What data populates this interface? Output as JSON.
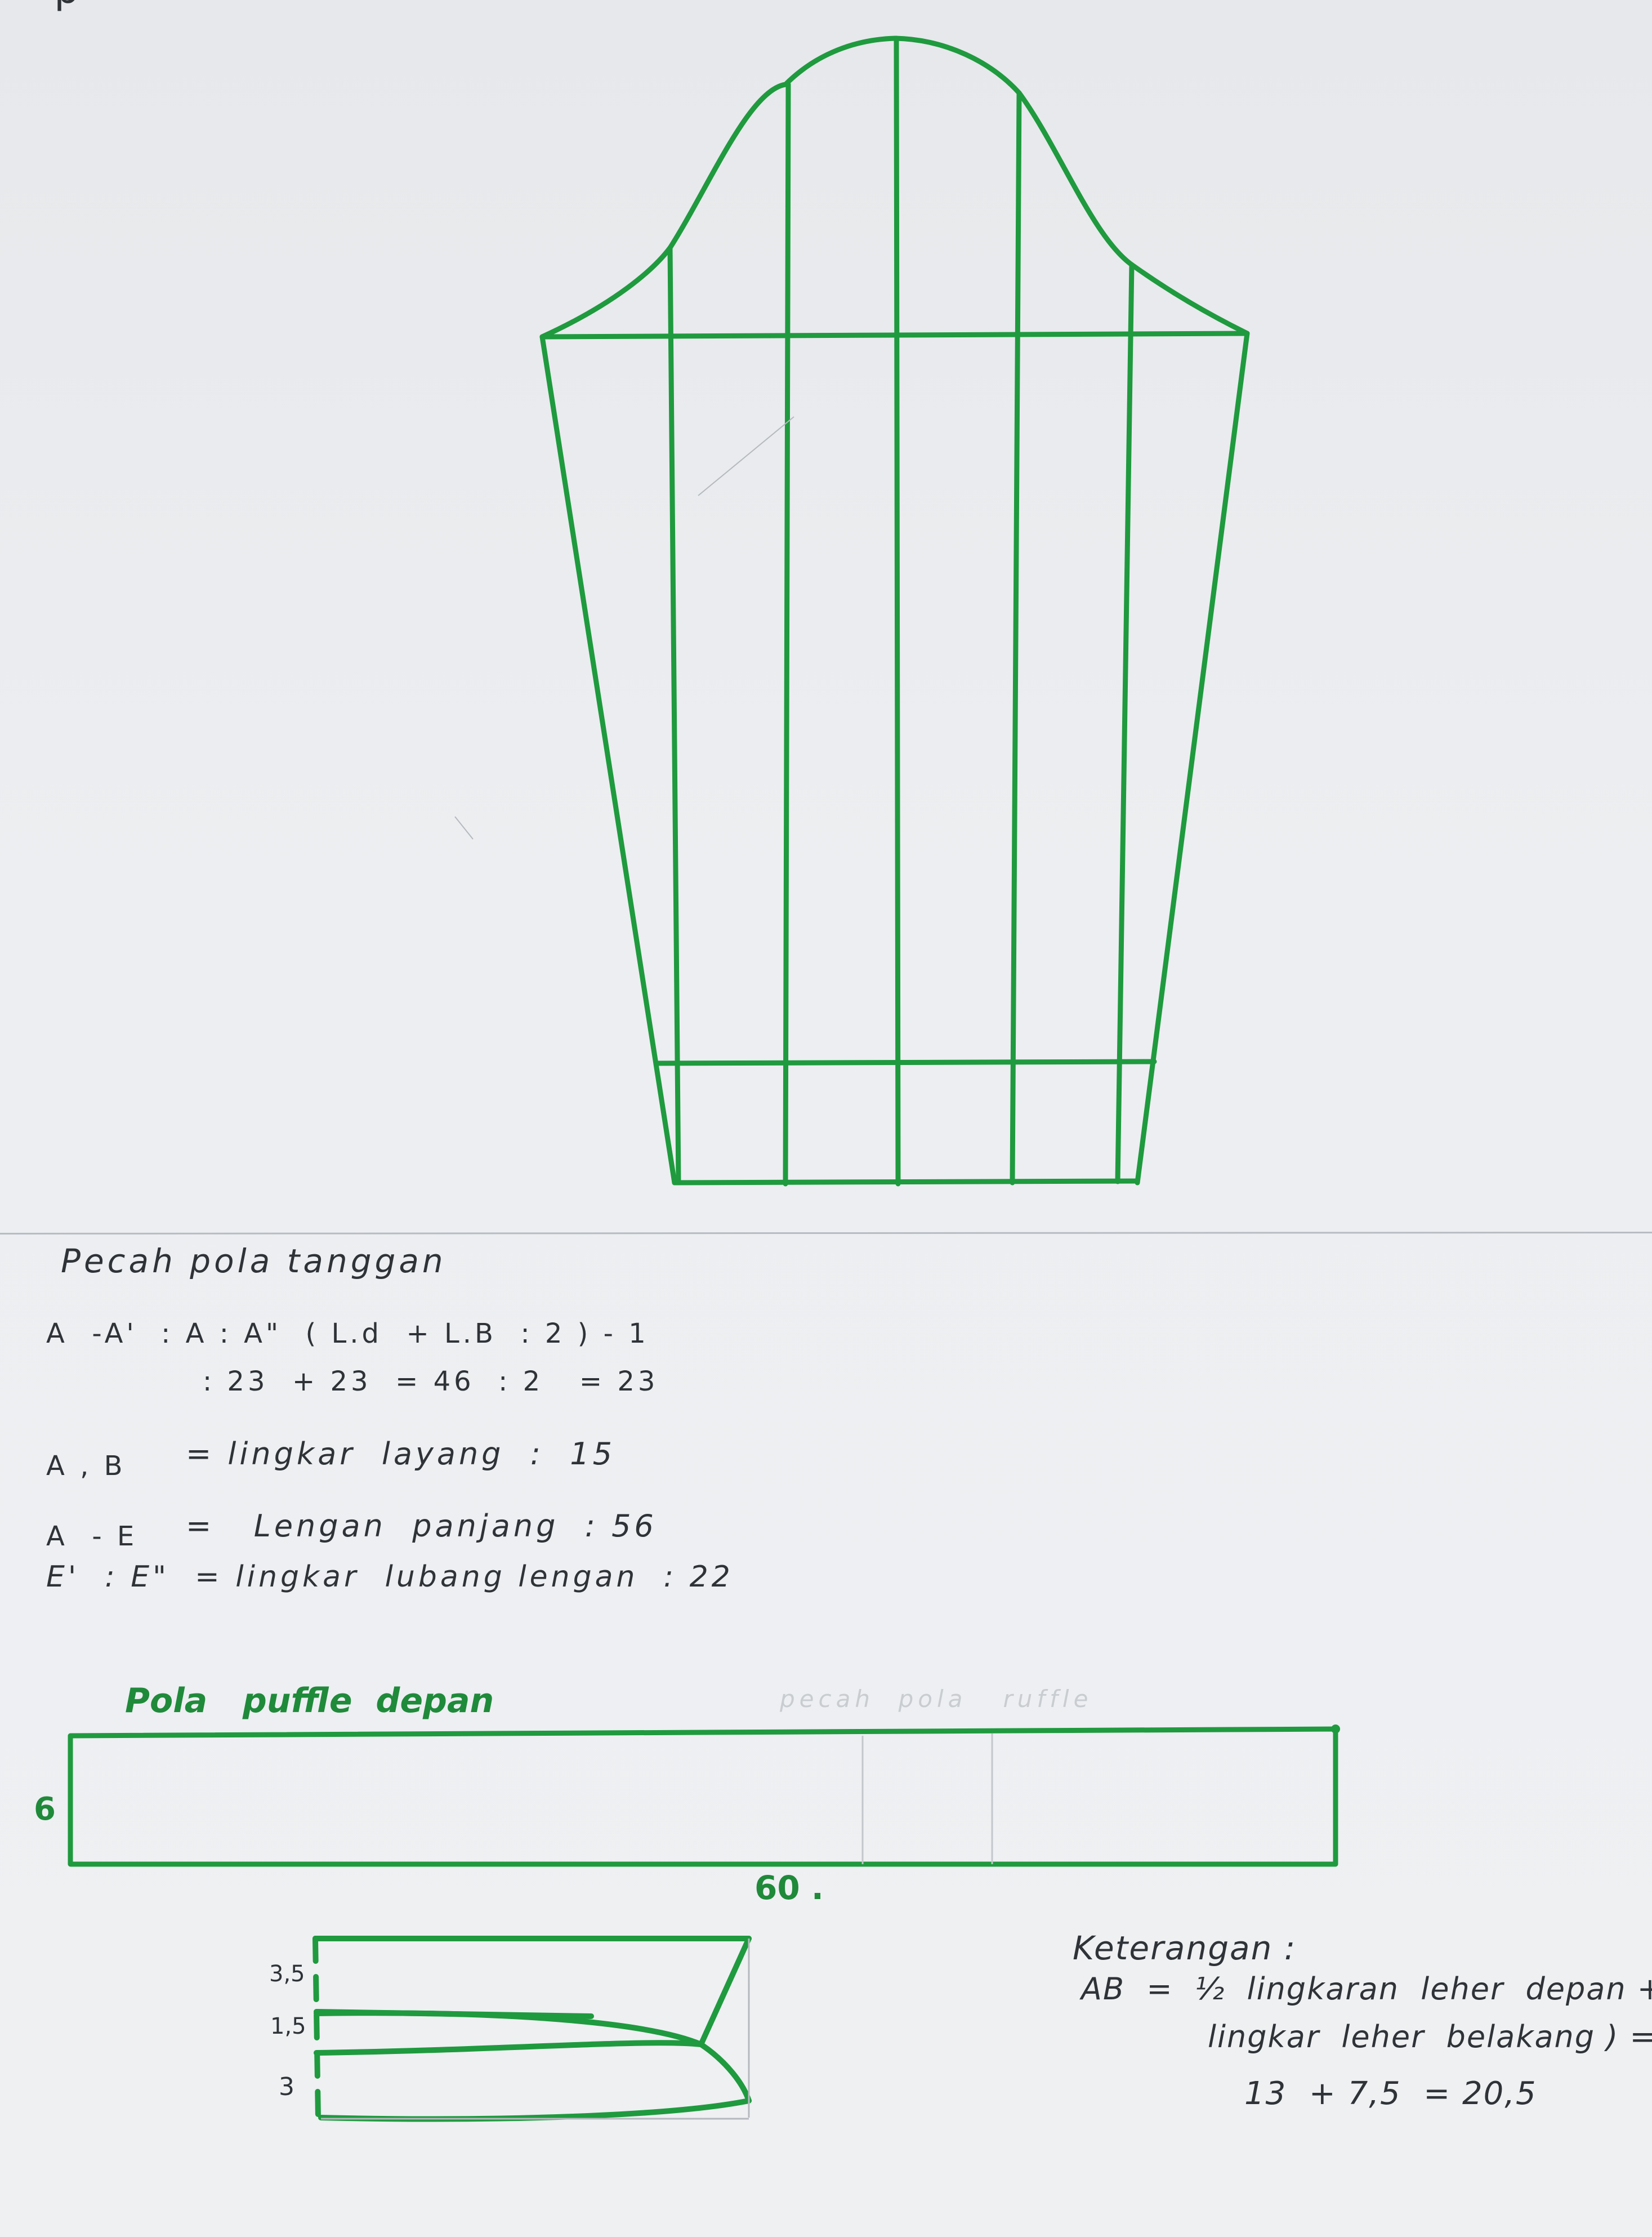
{
  "sleeve_pattern": {
    "stroke_color": "#1f9a3e"
  },
  "notes": {
    "title": "Pecah pola tanggan",
    "line1": "A  -A'  : A : A\"  ( L.d  + L.B  : 2 ) - 1",
    "line2": ": 23  + 23  = 46  : 2   = 23",
    "line3_a": "A , B",
    "line3_b": "= lingkar  layang  :  15",
    "line4_a": "A  - E",
    "line4_b": "=   Lengan  panjang  : 56",
    "line5": "E'  : E\"  = lingkar  lubang lengan  : 22"
  },
  "ruffle": {
    "title": "Pola   puffle  depan",
    "faint_text": "pecah  pola   ruffle",
    "height_label": "6",
    "width_label": "60 ."
  },
  "collar_piece": {
    "labels": [
      "3,5",
      "1,5",
      "3"
    ]
  },
  "keterangan": {
    "title": "Keterangan :",
    "line1": "AB  =  ½  lingkaran  leher  depan +",
    "line2": "lingkar  leher  belakang ) =",
    "line3": "13  + 7,5  = 20,5"
  },
  "corner_mark": "p"
}
